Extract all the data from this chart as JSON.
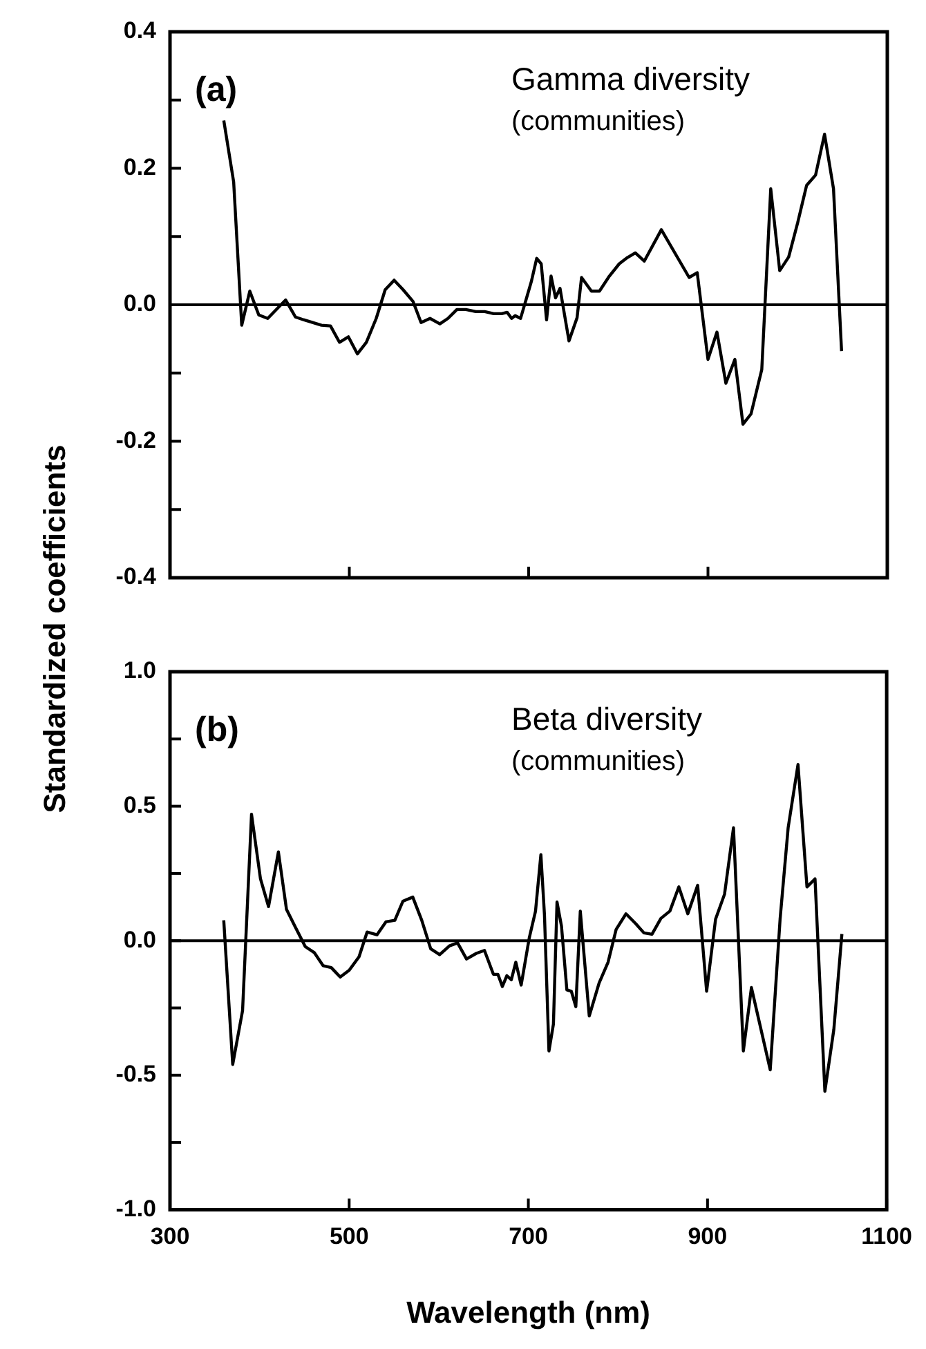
{
  "chart_data": [
    {
      "type": "line",
      "ylabel": "Standardized coefficients",
      "annotations": [
        "(a)",
        "Gamma diversity",
        "(communities)"
      ],
      "xlim": [
        300,
        1100
      ],
      "xticks": [
        300,
        500,
        700,
        900,
        1100
      ],
      "ylim": [
        -0.4,
        0.4
      ],
      "yticks": [
        {
          "value": -0.4,
          "label": "-0.4"
        },
        {
          "value": -0.3,
          "label": null
        },
        {
          "value": -0.2,
          "label": "-0.2"
        },
        {
          "value": -0.1,
          "label": null
        },
        {
          "value": 0,
          "label": "0.0"
        },
        {
          "value": 0.1,
          "label": null
        },
        {
          "value": 0.2,
          "label": "0.2"
        },
        {
          "value": 0.3,
          "label": null
        },
        {
          "value": 0.4,
          "label": "0.4"
        }
      ],
      "tick_labels": "y",
      "grid": false,
      "legend": false,
      "marker": "none",
      "line_style": "solid",
      "ref_lines": [
        {
          "axis": "y",
          "value": 0,
          "color": "#000000"
        }
      ],
      "series": [
        {
          "color": "#000000",
          "x": [
            360,
            371,
            380,
            389,
            399,
            409,
            429,
            440,
            449,
            469,
            479,
            489,
            499,
            509,
            519,
            530,
            540,
            550,
            560,
            571,
            580,
            590,
            601,
            610,
            620,
            630,
            641,
            651,
            661,
            670,
            676,
            681,
            685,
            691,
            703,
            709,
            714,
            720,
            725,
            730,
            735,
            745,
            754,
            759,
            770,
            779,
            790,
            801,
            810,
            819,
            829,
            848,
            879,
            888,
            900,
            910,
            920,
            930,
            939,
            948,
            960,
            970,
            980,
            990,
            1000,
            1010,
            1020,
            1030,
            1040,
            1049
          ],
          "values": [
            0.27,
            0.18,
            -0.03,
            0.02,
            -0.015,
            -0.02,
            0.007,
            -0.018,
            -0.022,
            -0.03,
            -0.031,
            -0.055,
            -0.047,
            -0.072,
            -0.055,
            -0.02,
            0.022,
            0.036,
            0.022,
            0.005,
            -0.026,
            -0.02,
            -0.028,
            -0.02,
            -0.007,
            -0.007,
            -0.01,
            -0.01,
            -0.013,
            -0.013,
            -0.011,
            -0.02,
            -0.016,
            -0.02,
            0.034,
            0.068,
            0.06,
            -0.022,
            0.042,
            0.01,
            0.024,
            -0.053,
            -0.019,
            0.04,
            0.02,
            0.02,
            0.042,
            0.06,
            0.069,
            0.076,
            0.064,
            0.11,
            0.04,
            0.047,
            -0.08,
            -0.04,
            -0.115,
            -0.08,
            -0.175,
            -0.16,
            -0.095,
            0.17,
            0.05,
            0.07,
            0.12,
            0.175,
            0.19,
            0.25,
            0.17,
            -0.068
          ]
        }
      ]
    },
    {
      "type": "line",
      "xlabel": "Wavelength (nm)",
      "annotations": [
        "(b)",
        "Beta diversity",
        "(communities)"
      ],
      "xlim": [
        300,
        1100
      ],
      "xticks": [
        300,
        500,
        700,
        900,
        1100
      ],
      "ylim": [
        -1,
        1
      ],
      "yticks": [
        {
          "value": -1,
          "label": "-1.0"
        },
        {
          "value": -0.75,
          "label": null
        },
        {
          "value": -0.5,
          "label": "-0.5"
        },
        {
          "value": -0.25,
          "label": null
        },
        {
          "value": 0,
          "label": "0.0"
        },
        {
          "value": 0.25,
          "label": null
        },
        {
          "value": 0.5,
          "label": "0.5"
        },
        {
          "value": 0.75,
          "label": null
        },
        {
          "value": 1,
          "label": "1.0"
        }
      ],
      "grid": false,
      "legend": false,
      "marker": "none",
      "line_style": "solid",
      "ref_lines": [
        {
          "axis": "y",
          "value": 0,
          "color": "#000000"
        }
      ],
      "series": [
        {
          "color": "#000000",
          "x": [
            360,
            370,
            381,
            391,
            401,
            410,
            421,
            430,
            440,
            451,
            461,
            471,
            480,
            490,
            500,
            511,
            520,
            531,
            541,
            551,
            560,
            571,
            581,
            591,
            601,
            612,
            621,
            631,
            642,
            651,
            661,
            666,
            671,
            676,
            681,
            686,
            692,
            701,
            708,
            714,
            718,
            723,
            728,
            732,
            737,
            743,
            748,
            753,
            758,
            768,
            779,
            789,
            798,
            809,
            820,
            829,
            838,
            848,
            858,
            868,
            878,
            889,
            899,
            909,
            919,
            929,
            940,
            949,
            970,
            981,
            990,
            1001,
            1011,
            1020,
            1031,
            1041,
            1050
          ],
          "values": [
            0.076,
            -0.46,
            -0.26,
            0.47,
            0.23,
            0.127,
            0.33,
            0.117,
            0.05,
            -0.022,
            -0.044,
            -0.093,
            -0.1,
            -0.135,
            -0.11,
            -0.06,
            0.032,
            0.022,
            0.07,
            0.076,
            0.147,
            0.162,
            0.076,
            -0.03,
            -0.052,
            -0.019,
            -0.008,
            -0.068,
            -0.047,
            -0.036,
            -0.125,
            -0.125,
            -0.17,
            -0.13,
            -0.145,
            -0.08,
            -0.165,
            0.01,
            0.11,
            0.32,
            0.096,
            -0.41,
            -0.31,
            0.144,
            0.054,
            -0.183,
            -0.188,
            -0.245,
            0.11,
            -0.28,
            -0.157,
            -0.08,
            0.042,
            0.1,
            0.063,
            0.029,
            0.024,
            0.083,
            0.11,
            0.2,
            0.1,
            0.206,
            -0.188,
            0.08,
            0.173,
            0.42,
            -0.41,
            -0.174,
            -0.48,
            0.08,
            0.42,
            0.655,
            0.2,
            0.23,
            -0.56,
            -0.33,
            0.025
          ]
        }
      ]
    }
  ]
}
